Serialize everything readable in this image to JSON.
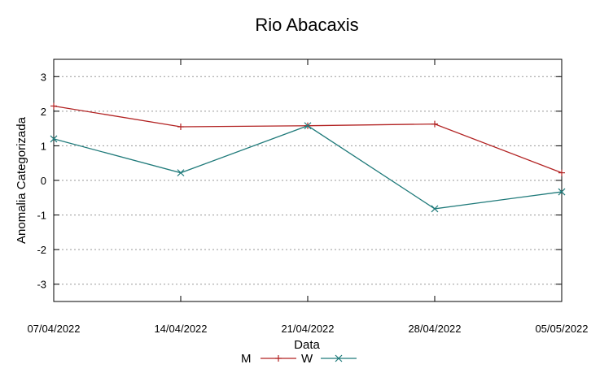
{
  "chart_data": {
    "type": "line",
    "title": "Rio Abacaxis",
    "xlabel": "Data",
    "ylabel": "Anomalia Categorizada",
    "x": [
      "07/04/2022",
      "14/04/2022",
      "21/04/2022",
      "28/04/2022",
      "05/05/2022"
    ],
    "ylim": [
      -3.5,
      3.5
    ],
    "yticks": [
      -3,
      -2,
      -1,
      0,
      1,
      2,
      3
    ],
    "grid": true,
    "legend": "bottom",
    "series": [
      {
        "name": "M",
        "values": [
          2.15,
          1.55,
          1.58,
          1.63,
          0.22
        ],
        "color": "#b22222",
        "marker": "plus"
      },
      {
        "name": "W",
        "values": [
          1.2,
          0.22,
          1.58,
          -0.82,
          -0.33
        ],
        "color": "#1f7a7a",
        "marker": "cross"
      }
    ]
  }
}
